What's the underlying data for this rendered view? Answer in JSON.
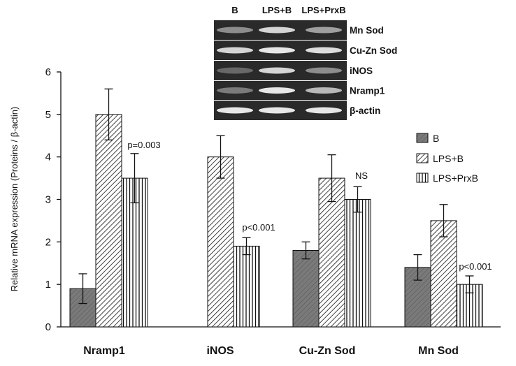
{
  "chart_data": {
    "type": "bar",
    "ylabel": "Relative mRNA expression (Proteins / β-actin)",
    "ylim": [
      0,
      6
    ],
    "yticks": [
      "0",
      "1",
      "2",
      "3",
      "4",
      "5",
      "6"
    ],
    "categories": [
      "Nramp1",
      "iNOS",
      "Cu-Zn Sod",
      "Mn Sod"
    ],
    "series": [
      {
        "name": "B",
        "values": [
          0.9,
          null,
          1.8,
          1.4
        ],
        "errors": [
          0.35,
          null,
          0.2,
          0.3
        ]
      },
      {
        "name": "LPS+B",
        "values": [
          5.0,
          4.0,
          3.5,
          2.5
        ],
        "errors": [
          0.6,
          0.5,
          0.55,
          0.38
        ]
      },
      {
        "name": "LPS+PrxB",
        "values": [
          3.5,
          1.9,
          3.0,
          1.0
        ],
        "errors": [
          0.58,
          0.2,
          0.3,
          0.2
        ]
      }
    ],
    "annotations": [
      "p=0.003",
      "p<0.001",
      "NS",
      "p<0.001"
    ],
    "legend": {
      "position": "right"
    },
    "grid": false,
    "bar_fill": "#ffffff",
    "bar_stroke": "#111111",
    "solid_fill": "#777777"
  },
  "inset_gel": {
    "columns": [
      "B",
      "LPS+B",
      "LPS+PrxB"
    ],
    "rows": [
      "Mn Sod",
      "Cu-Zn Sod",
      "iNOS",
      "Nramp1",
      "β-actin"
    ],
    "band_intensity": [
      [
        0.45,
        0.85,
        0.55
      ],
      [
        0.85,
        0.95,
        0.9
      ],
      [
        0.25,
        0.85,
        0.45
      ],
      [
        0.35,
        0.95,
        0.7
      ],
      [
        0.95,
        0.95,
        0.95
      ]
    ],
    "background": "#2a2a2a"
  }
}
